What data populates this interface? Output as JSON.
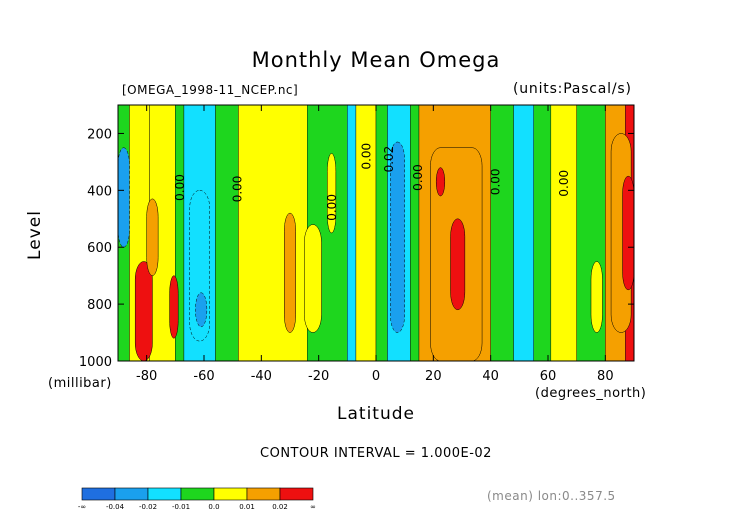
{
  "header": {
    "title": "Monthly Mean Omega",
    "file_label": "[OMEGA_1998-11_NCEP.nc]",
    "units_label": "(units:Pascal/s)"
  },
  "axes": {
    "ylabel": "Level",
    "yunits": "(millibar)",
    "xlabel": "Latitude",
    "xunits": "(degrees_north)"
  },
  "contour_interval": "CONTOUR INTERVAL = 1.000E-02",
  "footer_note": "(mean) lon:0..357.5",
  "chart_data": {
    "type": "heatmap",
    "title": "Monthly Mean Omega",
    "subtitle": "[OMEGA_1998-11_NCEP.nc]",
    "units": "(units:Pascal/s)",
    "xlabel": "Latitude",
    "xunits": "(degrees_north)",
    "ylabel": "Level",
    "yunits": "(millibar)",
    "xlim": [
      -90,
      90
    ],
    "ylim": [
      1000,
      100
    ],
    "y_reversed": true,
    "xticks": [
      -80,
      -60,
      -40,
      -20,
      0,
      20,
      40,
      60,
      80
    ],
    "yticks": [
      200,
      400,
      600,
      800,
      1000
    ],
    "x_tick_labels": [
      "-80",
      "-60",
      "-40",
      "-20",
      "0",
      "20",
      "40",
      "60",
      "80"
    ],
    "y_tick_labels": [
      "200",
      "400",
      "600",
      "800",
      "1000"
    ],
    "contour_interval": 0.01,
    "contour_labels": [
      {
        "text": "0.00",
        "x": -67,
        "y": 390
      },
      {
        "text": "0.00",
        "x": -47,
        "y": 395
      },
      {
        "text": "0.00",
        "x": -14,
        "y": 460
      },
      {
        "text": "0.00",
        "x": -2,
        "y": 280
      },
      {
        "text": "0.02",
        "x": 6,
        "y": 290
      },
      {
        "text": "0.00",
        "x": 16,
        "y": 355
      },
      {
        "text": "0.00",
        "x": 43,
        "y": 370
      },
      {
        "text": "0.00",
        "x": 67,
        "y": 375
      }
    ],
    "levels": [
      -0.04,
      -0.02,
      -0.01,
      0.0,
      0.01,
      0.02
    ],
    "legend": {
      "colors": [
        "#1f6fe0",
        "#1aa0ee",
        "#12e0ff",
        "#1ed61e",
        "#ffff00",
        "#f5a000",
        "#ee1010"
      ],
      "labels": [
        "-∞",
        "-0.04",
        "-0.02",
        "-0.01",
        "0.0",
        "0.01",
        "0.02",
        "∞"
      ]
    },
    "bands": [
      {
        "x0": -90,
        "x1": -86,
        "v": 3
      },
      {
        "x0": -86,
        "x1": -79,
        "v": 4
      },
      {
        "x0": -79,
        "x1": -70,
        "v": 4
      },
      {
        "x0": -70,
        "x1": -67,
        "v": 3
      },
      {
        "x0": -67,
        "x1": -56,
        "v": 2
      },
      {
        "x0": -56,
        "x1": -48,
        "v": 3
      },
      {
        "x0": -48,
        "x1": -24,
        "v": 4
      },
      {
        "x0": -24,
        "x1": -10,
        "v": 3
      },
      {
        "x0": -10,
        "x1": -7,
        "v": 2
      },
      {
        "x0": -7,
        "x1": 0,
        "v": 4
      },
      {
        "x0": 0,
        "x1": 4,
        "v": 3
      },
      {
        "x0": 4,
        "x1": 12,
        "v": 2
      },
      {
        "x0": 12,
        "x1": 15,
        "v": 3
      },
      {
        "x0": 15,
        "x1": 40,
        "v": 5
      },
      {
        "x0": 40,
        "x1": 48,
        "v": 3
      },
      {
        "x0": 48,
        "x1": 55,
        "v": 2
      },
      {
        "x0": 55,
        "x1": 61,
        "v": 3
      },
      {
        "x0": 61,
        "x1": 70,
        "v": 4
      },
      {
        "x0": 70,
        "x1": 80,
        "v": 3
      },
      {
        "x0": 80,
        "x1": 87,
        "v": 5
      },
      {
        "x0": 87,
        "x1": 90,
        "v": 6
      }
    ],
    "cells": [
      {
        "x0": -90,
        "x1": -86,
        "y0": 250,
        "y1": 600,
        "v": 1
      },
      {
        "x0": -84,
        "x1": -78,
        "y0": 650,
        "y1": 1000,
        "v": 6
      },
      {
        "x0": -80,
        "x1": -76,
        "y0": 430,
        "y1": 700,
        "v": 5
      },
      {
        "x0": -72,
        "x1": -69,
        "y0": 700,
        "y1": 920,
        "v": 6
      },
      {
        "x0": -65,
        "x1": -58,
        "y0": 400,
        "y1": 930,
        "v": 2
      },
      {
        "x0": -63,
        "x1": -59,
        "y0": 760,
        "y1": 880,
        "v": 1
      },
      {
        "x0": -32,
        "x1": -28,
        "y0": 480,
        "y1": 900,
        "v": 5
      },
      {
        "x0": -25,
        "x1": -19,
        "y0": 520,
        "y1": 900,
        "v": 4
      },
      {
        "x0": -17,
        "x1": -14,
        "y0": 270,
        "y1": 550,
        "v": 4
      },
      {
        "x0": 5,
        "x1": 10,
        "y0": 230,
        "y1": 900,
        "v": 1
      },
      {
        "x0": 19,
        "x1": 37,
        "y0": 250,
        "y1": 1000,
        "v": 5
      },
      {
        "x0": 26,
        "x1": 31,
        "y0": 500,
        "y1": 820,
        "v": 6
      },
      {
        "x0": 21,
        "x1": 24,
        "y0": 320,
        "y1": 420,
        "v": 6
      },
      {
        "x0": 75,
        "x1": 79,
        "y0": 650,
        "y1": 900,
        "v": 4
      },
      {
        "x0": 82,
        "x1": 89,
        "y0": 200,
        "y1": 900,
        "v": 5
      },
      {
        "x0": 86,
        "x1": 90,
        "y0": 350,
        "y1": 750,
        "v": 6
      }
    ]
  }
}
